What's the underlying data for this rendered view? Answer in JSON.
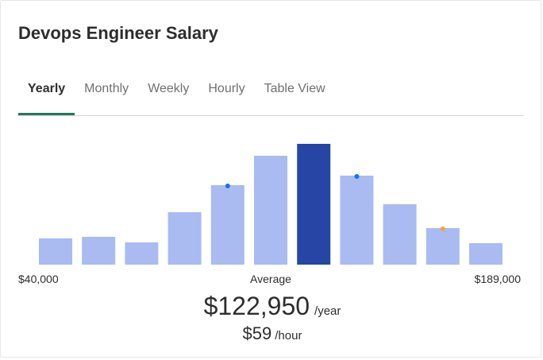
{
  "header": {
    "title": "Devops Engineer Salary"
  },
  "tabs": [
    {
      "label": "Yearly",
      "active": true
    },
    {
      "label": "Monthly",
      "active": false
    },
    {
      "label": "Weekly",
      "active": false
    },
    {
      "label": "Hourly",
      "active": false
    },
    {
      "label": "Table View",
      "active": false
    }
  ],
  "range": {
    "low": "$40,000",
    "high": "$189,000",
    "average_label": "Average"
  },
  "summary": {
    "yearly_amount": "$122,950",
    "yearly_unit": "/year",
    "hourly_amount": "$59",
    "hourly_unit": "/hour"
  },
  "colors": {
    "bar": "#a9bbf1",
    "bar_highlight": "#2745a5",
    "marker_blue": "#1a73e8",
    "marker_orange": "#f5a33a",
    "active_tab_underline": "#1f7a5c"
  },
  "chart_data": {
    "type": "bar",
    "values": [
      33,
      35,
      28,
      66,
      100,
      137,
      152,
      112,
      76,
      46,
      27
    ],
    "ylim": [
      0,
      160
    ],
    "highlight_index": 6,
    "markers": [
      {
        "index": 4,
        "value": 99,
        "color": "blue"
      },
      {
        "index": 7,
        "value": 111,
        "color": "blue"
      },
      {
        "index": 9,
        "value": 45,
        "color": "orange"
      }
    ]
  }
}
